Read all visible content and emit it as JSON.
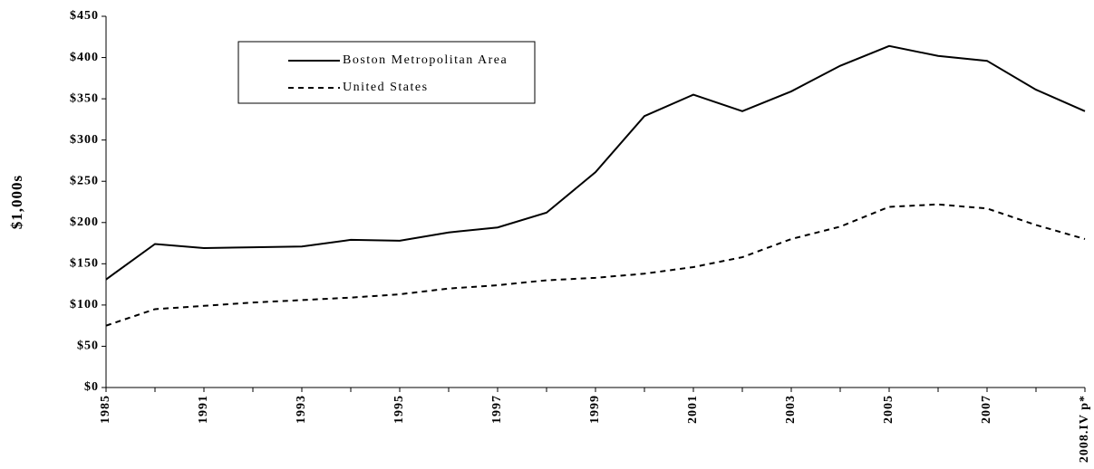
{
  "chart_data": {
    "type": "line",
    "ylabel": "$1,000s",
    "categories": [
      "1985",
      null,
      "1991",
      null,
      "1993",
      null,
      "1995",
      null,
      "1997",
      null,
      "1999",
      null,
      "2001",
      null,
      "2003",
      null,
      "2005",
      null,
      "2007",
      null,
      "2008.IV p*"
    ],
    "series": [
      {
        "name": "Boston Metropolitan Area",
        "color": "#000000",
        "linestyle": "solid",
        "values": [
          131,
          174,
          169,
          170,
          171,
          179,
          178,
          188,
          194,
          212,
          261,
          329,
          355,
          335,
          359,
          390,
          414,
          402,
          396,
          361,
          335
        ]
      },
      {
        "name": "United States",
        "color": "#000000",
        "linestyle": "dashed",
        "values": [
          75,
          95,
          99,
          103,
          106,
          109,
          113,
          120,
          124,
          130,
          133,
          138,
          146,
          158,
          180,
          195,
          219,
          222,
          217,
          197,
          180
        ]
      }
    ],
    "ylim": [
      0,
      450
    ],
    "yticks": [
      {
        "value": 0,
        "label": "$0"
      },
      {
        "value": 50,
        "label": "$50"
      },
      {
        "value": 100,
        "label": "$100"
      },
      {
        "value": 150,
        "label": "$150"
      },
      {
        "value": 200,
        "label": "$200"
      },
      {
        "value": 250,
        "label": "$250"
      },
      {
        "value": 300,
        "label": "$300"
      },
      {
        "value": 350,
        "label": "$350"
      },
      {
        "value": 400,
        "label": "$400"
      },
      {
        "value": 450,
        "label": "$450"
      }
    ],
    "grid": false,
    "legend": "upper left"
  }
}
